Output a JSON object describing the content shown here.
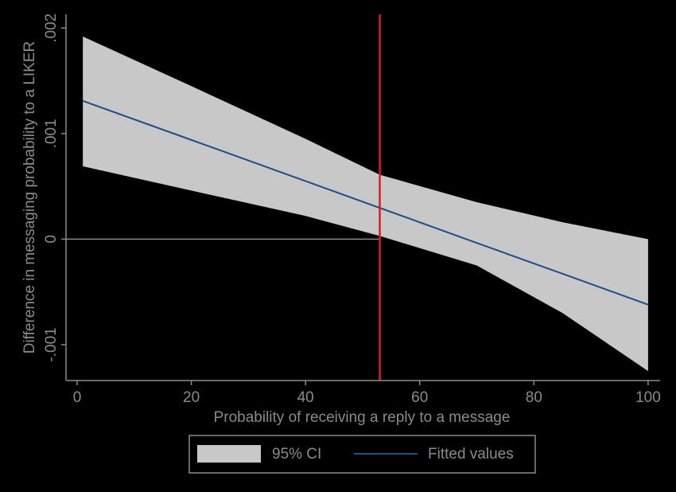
{
  "chart_data": {
    "type": "line",
    "x_label": "Probability of receiving a reply to a message",
    "y_label": "Difference in messaging probability to a LIKER",
    "x": [
      1,
      20,
      40,
      53,
      70,
      85,
      100
    ],
    "series": [
      {
        "name": "95% CI",
        "color": "#c8c8c8",
        "upper": [
          0.00192,
          0.00145,
          0.00095,
          0.00061,
          0.00035,
          0.00016,
          0.0
        ],
        "lower": [
          0.00069,
          0.00046,
          0.00022,
          3e-05,
          -0.00025,
          -0.0007,
          -0.00125
        ]
      },
      {
        "name": "Fitted values",
        "color": "#1f4e86",
        "values": [
          0.00131,
          0.00094,
          0.00055,
          0.000296,
          -3.6e-05,
          -0.000328,
          -0.000621
        ]
      }
    ],
    "vline_x": 53,
    "vline_color": "#c0282a",
    "hline_y": 0,
    "xlim": [
      -1.95,
      102.1
    ],
    "ylim": [
      -0.00134,
      0.00213
    ],
    "xticks": [
      0,
      20,
      40,
      60,
      80,
      100
    ],
    "yticks": [
      {
        "value": -0.001,
        "label": "-.001"
      },
      0,
      {
        "value": 0.001,
        "label": ".001"
      },
      {
        "value": 0.002,
        "label": ".002"
      }
    ]
  }
}
